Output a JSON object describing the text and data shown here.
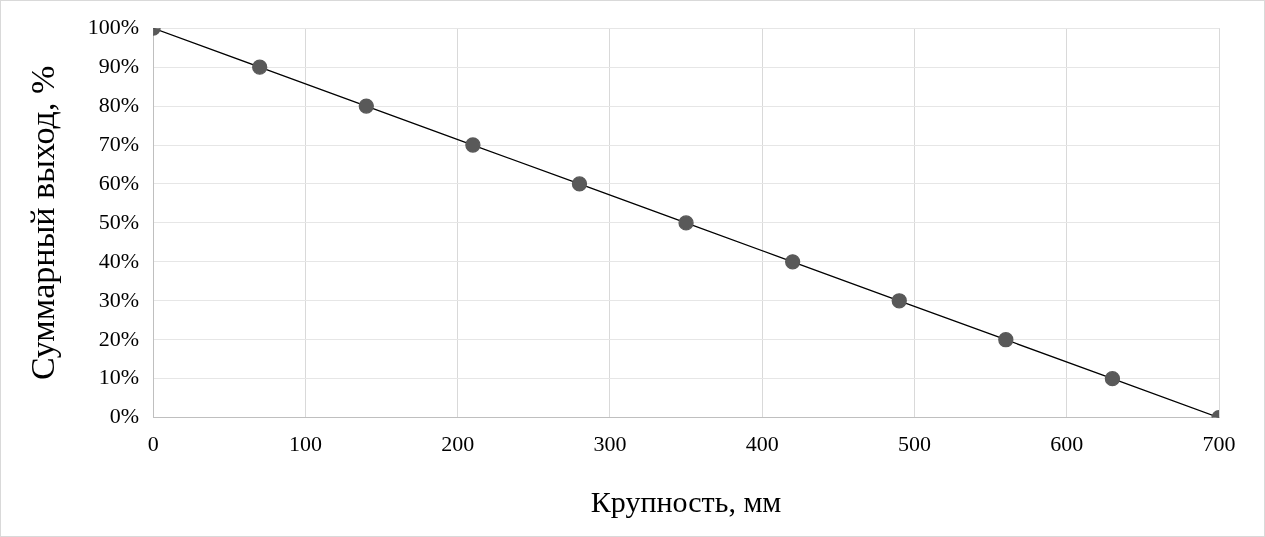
{
  "chart_data": {
    "type": "line",
    "xlabel": "Крупность, мм",
    "ylabel": "Суммарный выход, %",
    "x": [
      0,
      70,
      140,
      210,
      280,
      350,
      420,
      490,
      560,
      630,
      700
    ],
    "series": [
      {
        "color": "#595959",
        "values": [
          100,
          90,
          80,
          70,
          60,
          50,
          40,
          30,
          20,
          10,
          0
        ]
      }
    ],
    "xlim": [
      0,
      700
    ],
    "xticks": [
      0,
      100,
      200,
      300,
      400,
      500,
      600,
      700
    ],
    "ylim": [
      0,
      100
    ],
    "yticks": [
      {
        "value": 0,
        "label": "0%"
      },
      {
        "value": 10,
        "label": "10%"
      },
      {
        "value": 20,
        "label": "20%"
      },
      {
        "value": 30,
        "label": "30%"
      },
      {
        "value": 40,
        "label": "40%"
      },
      {
        "value": 50,
        "label": "50%"
      },
      {
        "value": 60,
        "label": "60%"
      },
      {
        "value": 70,
        "label": "70%"
      },
      {
        "value": 80,
        "label": "80%"
      },
      {
        "value": 90,
        "label": "90%"
      },
      {
        "value": 100,
        "label": "100%"
      }
    ],
    "grid": true,
    "legend": false,
    "marker": "circle",
    "line_style": "solid"
  }
}
